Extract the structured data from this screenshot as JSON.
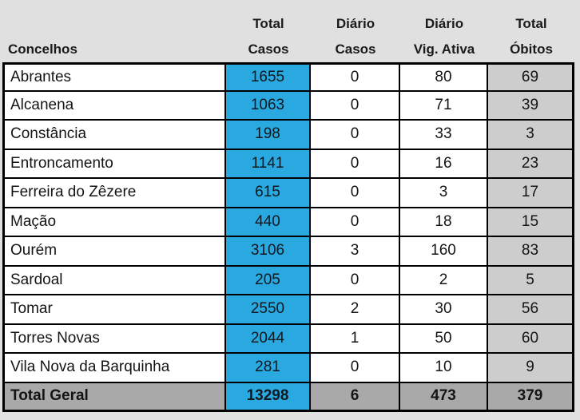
{
  "colors": {
    "page_bg": "#E0E0E0",
    "casos_fill": "#29A9E0",
    "obitos_fill": "#CDCDCD",
    "total_row_fill": "#A9A9A9",
    "border": "#000000"
  },
  "table": {
    "header": {
      "row_label_column": "Concelhos",
      "columns": [
        {
          "line1": "Total",
          "line2": "Casos"
        },
        {
          "line1": "Diário",
          "line2": "Casos"
        },
        {
          "line1": "Diário",
          "line2": "Vig. Ativa"
        },
        {
          "line1": "Total",
          "line2": "Óbitos"
        }
      ]
    },
    "rows": [
      {
        "concelho": "Abrantes",
        "total_casos": "1655",
        "diario_casos": "0",
        "diario_vig_ativa": "80",
        "total_obitos": "69"
      },
      {
        "concelho": "Alcanena",
        "total_casos": "1063",
        "diario_casos": "0",
        "diario_vig_ativa": "71",
        "total_obitos": "39"
      },
      {
        "concelho": "Constância",
        "total_casos": "198",
        "diario_casos": "0",
        "diario_vig_ativa": "33",
        "total_obitos": "3"
      },
      {
        "concelho": "Entroncamento",
        "total_casos": "1141",
        "diario_casos": "0",
        "diario_vig_ativa": "16",
        "total_obitos": "23"
      },
      {
        "concelho": "Ferreira do Zêzere",
        "total_casos": "615",
        "diario_casos": "0",
        "diario_vig_ativa": "3",
        "total_obitos": "17"
      },
      {
        "concelho": "Mação",
        "total_casos": "440",
        "diario_casos": "0",
        "diario_vig_ativa": "18",
        "total_obitos": "15"
      },
      {
        "concelho": "Ourém",
        "total_casos": "3106",
        "diario_casos": "3",
        "diario_vig_ativa": "160",
        "total_obitos": "83"
      },
      {
        "concelho": "Sardoal",
        "total_casos": "205",
        "diario_casos": "0",
        "diario_vig_ativa": "2",
        "total_obitos": "5"
      },
      {
        "concelho": "Tomar",
        "total_casos": "2550",
        "diario_casos": "2",
        "diario_vig_ativa": "30",
        "total_obitos": "56"
      },
      {
        "concelho": "Torres Novas",
        "total_casos": "2044",
        "diario_casos": "1",
        "diario_vig_ativa": "50",
        "total_obitos": "60"
      },
      {
        "concelho": "Vila Nova da Barquinha",
        "total_casos": "281",
        "diario_casos": "0",
        "diario_vig_ativa": "10",
        "total_obitos": "9"
      }
    ],
    "total_row": {
      "concelho": "Total Geral",
      "total_casos": "13298",
      "diario_casos": "6",
      "diario_vig_ativa": "473",
      "total_obitos": "379"
    }
  }
}
